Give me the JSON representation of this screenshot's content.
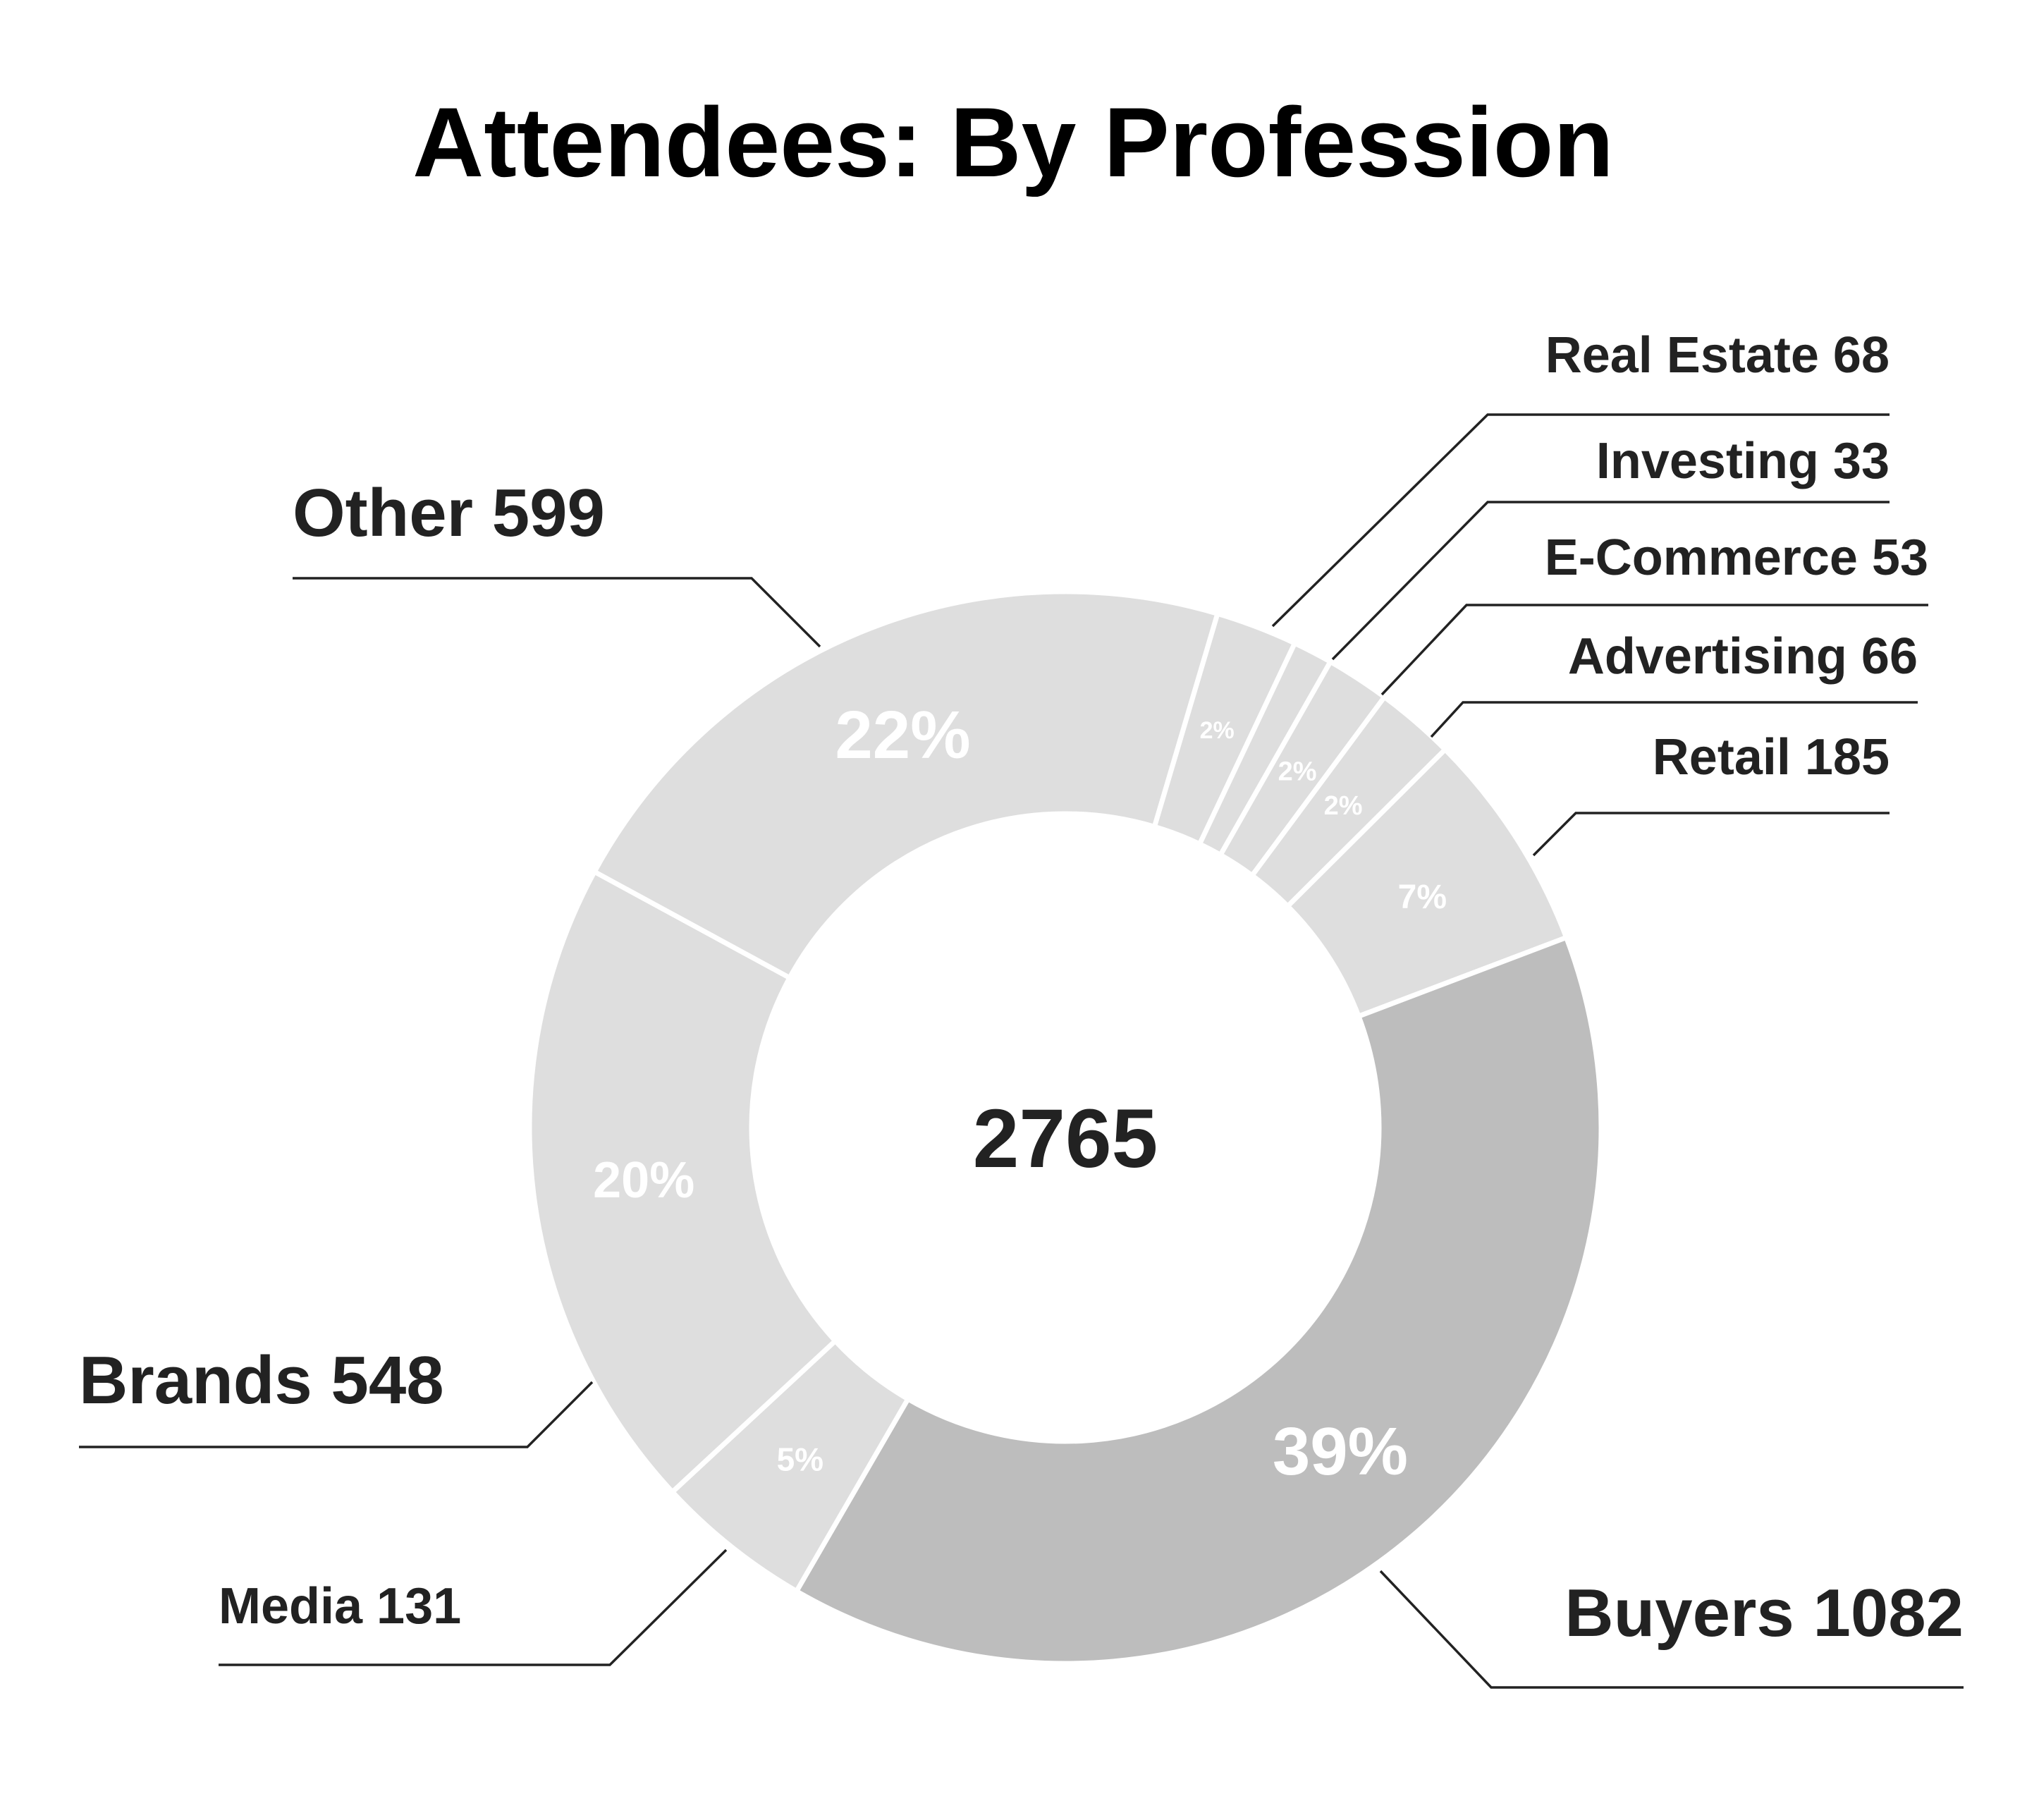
{
  "chart_data": {
    "type": "pie",
    "title": "Attendees: By Profession",
    "total_label": "2765",
    "segments": [
      {
        "label": "Real Estate 68",
        "name": "Real Estate",
        "value": 68,
        "percent_label": "2%",
        "color": "#dedede"
      },
      {
        "label": "Investing 33",
        "name": "Investing",
        "value": 33,
        "percent_label": "",
        "color": "#dedede"
      },
      {
        "label": "E-Commerce 53",
        "name": "E-Commerce",
        "value": 53,
        "percent_label": "2%",
        "color": "#dedede"
      },
      {
        "label": "Advertising 66",
        "name": "Advertising",
        "value": 66,
        "percent_label": "2%",
        "color": "#dedede"
      },
      {
        "label": "Retail 185",
        "name": "Retail",
        "value": 185,
        "percent_label": "7%",
        "color": "#dedede"
      },
      {
        "label": "Buyers 1082",
        "name": "Buyers",
        "value": 1082,
        "percent_label": "39%",
        "color": "#bdbdbd"
      },
      {
        "label": "Media 131",
        "name": "Media",
        "value": 131,
        "percent_label": "5%",
        "color": "#dedede"
      },
      {
        "label": "Brands 548",
        "name": "Brands",
        "value": 548,
        "percent_label": "20%",
        "color": "#dedede"
      },
      {
        "label": "Other 599",
        "name": "Other",
        "value": 599,
        "percent_label": "22%",
        "color": "#dedede"
      }
    ]
  }
}
